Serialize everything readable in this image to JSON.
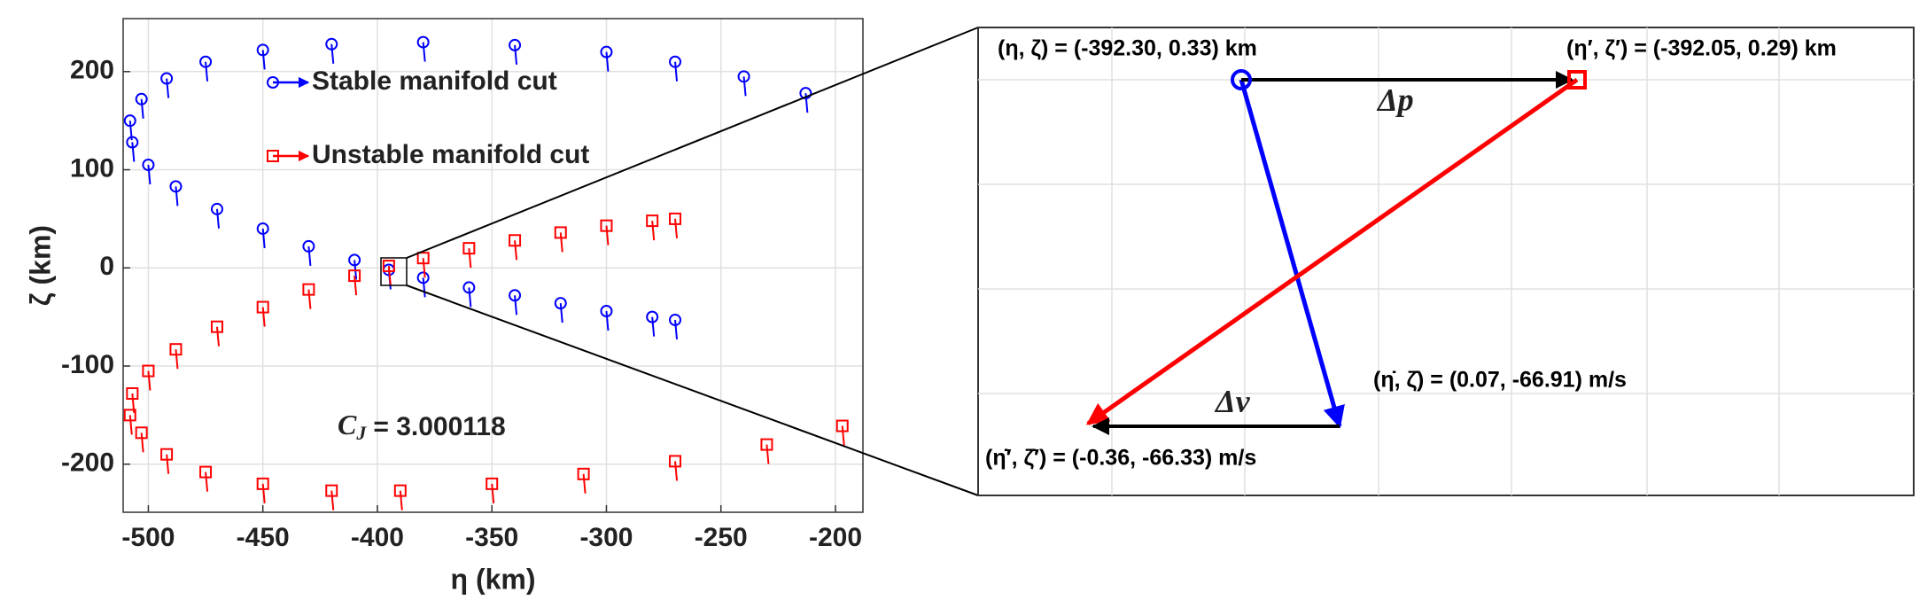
{
  "chart_data": [
    {
      "type": "scatter",
      "xlabel": "η (km)",
      "ylabel": "ζ (km)",
      "xlim": [
        -511,
        -188
      ],
      "ylim": [
        -249,
        254
      ],
      "xticks": [
        -500,
        -450,
        -400,
        -350,
        -300,
        -250,
        -200
      ],
      "yticks": [
        -200,
        -100,
        0,
        100,
        200
      ],
      "grid": true,
      "series": [
        {
          "name": "Stable manifold cut",
          "color": "#0000ff",
          "marker": "circle",
          "x": [
            -213,
            -240,
            -270,
            -300,
            -340,
            -380,
            -420,
            -450,
            -475,
            -492,
            -503,
            -508,
            -507,
            -500,
            -488,
            -470,
            -450,
            -430,
            -410,
            -395,
            -380,
            -360,
            -340,
            -320,
            -300,
            -280,
            -270
          ],
          "values": [
            178,
            195,
            210,
            220,
            227,
            230,
            228,
            222,
            210,
            193,
            172,
            150,
            128,
            105,
            83,
            60,
            40,
            22,
            8,
            -2,
            -10,
            -20,
            -28,
            -36,
            -44,
            -50,
            -53
          ]
        },
        {
          "name": "Unstable manifold cut",
          "color": "#ff0000",
          "marker": "square",
          "x": [
            -197,
            -230,
            -270,
            -310,
            -350,
            -390,
            -420,
            -450,
            -475,
            -492,
            -503,
            -508,
            -507,
            -500,
            -488,
            -470,
            -450,
            -430,
            -410,
            -395,
            -380,
            -360,
            -340,
            -320,
            -300,
            -280,
            -270
          ],
          "values": [
            -161,
            -180,
            -197,
            -210,
            -220,
            -227,
            -227,
            -220,
            -208,
            -190,
            -168,
            -150,
            -128,
            -105,
            -83,
            -60,
            -40,
            -22,
            -8,
            2,
            10,
            20,
            28,
            36,
            43,
            48,
            50
          ]
        }
      ],
      "cj_symbol": "C",
      "cj_subscript": "J",
      "cj_value": "= 3.000118"
    },
    {
      "type": "zoom",
      "stable_label": "(η, ζ) = (-392.30, 0.33) km",
      "unstable_label": "(η′, ζ′) = (-392.05, 0.29) km",
      "stable_velocity_label": "(η̇, ζ̇) = (0.07, -66.91) m/s",
      "unstable_velocity_label": "(η̇′, ζ̇′) = (-0.36, -66.33) m/s",
      "dp_label": "Δp",
      "dv_label": "Δv"
    }
  ]
}
